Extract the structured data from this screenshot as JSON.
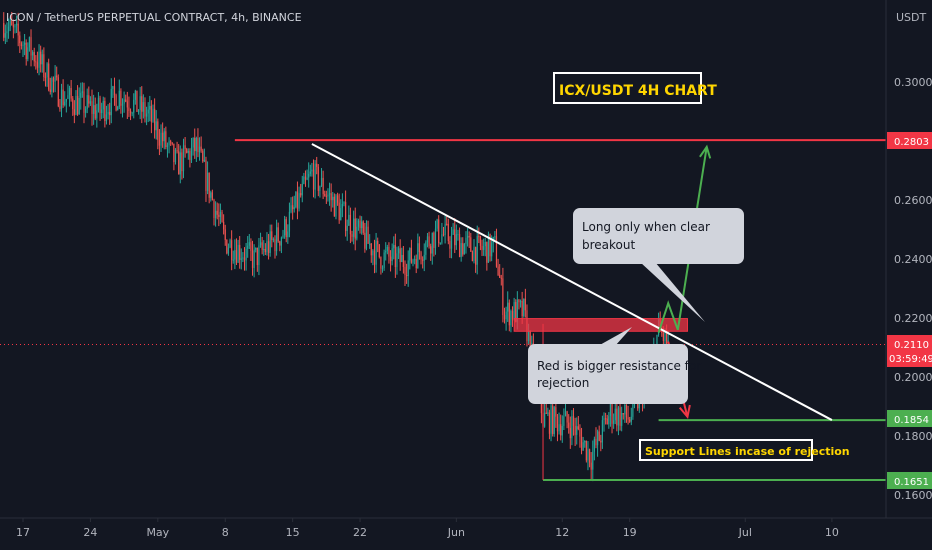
{
  "header": {
    "symbol_title": "ICON / TetherUS PERPETUAL CONTRACT, 4h, BINANCE",
    "currency": "USDT"
  },
  "annotations": {
    "chart_title": "ICX/USDT 4H CHART",
    "callout_long": [
      "Long only when clear",
      "breakout"
    ],
    "callout_red": [
      "Red is bigger resistance for",
      "rejection"
    ],
    "support_label": "Support Lines incase of rejection"
  },
  "price_badges": {
    "resistance_high": "0.2803",
    "current_price": "0.2110",
    "countdown": "03:59:49",
    "support_1": "0.1854",
    "support_2": "0.1651"
  },
  "colors": {
    "background": "#131722",
    "up_candle": "#26a69a",
    "down_candle": "#ef5350",
    "resistance_line": "#f23645",
    "support_line": "#4caf50",
    "trendline": "#ffffff",
    "projection_up": "#4caf50",
    "projection_down": "#f23645",
    "title_box_bg": "#ffffff",
    "title_text": "#ffd600",
    "callout_bg": "#d1d4dc"
  },
  "chart_data": {
    "type": "candlestick",
    "title": "ICX/USDT 4H CHART",
    "ylabel": "USDT",
    "ylim": [
      0.156,
      0.322
    ],
    "y_ticks": [
      0.16,
      0.18,
      0.2,
      0.22,
      0.24,
      0.26,
      0.28,
      0.3
    ],
    "y_tick_labels": [
      "0.1600",
      "0.1800",
      "0.2000",
      "0.2200",
      "0.2400",
      "0.2600",
      "0.2800",
      "0.3000"
    ],
    "x_tick_labels": [
      "17",
      "24",
      "May",
      "8",
      "15",
      "22",
      "Jun",
      "12",
      "19",
      "Jul",
      "10"
    ],
    "x_ticks_dates": [
      "2023-04-17",
      "2023-04-24",
      "2023-05-01",
      "2023-05-08",
      "2023-05-15",
      "2023-05-22",
      "2023-06-01",
      "2023-06-12",
      "2023-06-19",
      "2023-07-01",
      "2023-07-10"
    ],
    "price_path": [
      {
        "date": "2023-04-15",
        "price": 0.32
      },
      {
        "date": "2023-04-18",
        "price": 0.31
      },
      {
        "date": "2023-04-21",
        "price": 0.295
      },
      {
        "date": "2023-04-25",
        "price": 0.29
      },
      {
        "date": "2023-04-27",
        "price": 0.296
      },
      {
        "date": "2023-04-30",
        "price": 0.289
      },
      {
        "date": "2023-05-03",
        "price": 0.272
      },
      {
        "date": "2023-05-05",
        "price": 0.278
      },
      {
        "date": "2023-05-08",
        "price": 0.246
      },
      {
        "date": "2023-05-11",
        "price": 0.24
      },
      {
        "date": "2023-05-14",
        "price": 0.249
      },
      {
        "date": "2023-05-17",
        "price": 0.269
      },
      {
        "date": "2023-05-20",
        "price": 0.256
      },
      {
        "date": "2023-05-24",
        "price": 0.241
      },
      {
        "date": "2023-05-27",
        "price": 0.239
      },
      {
        "date": "2023-05-30",
        "price": 0.249
      },
      {
        "date": "2023-06-03",
        "price": 0.243
      },
      {
        "date": "2023-06-05",
        "price": 0.244
      },
      {
        "date": "2023-06-06",
        "price": 0.222
      },
      {
        "date": "2023-06-08",
        "price": 0.222
      },
      {
        "date": "2023-06-10",
        "price": 0.186
      },
      {
        "date": "2023-06-13",
        "price": 0.184
      },
      {
        "date": "2023-06-15",
        "price": 0.173
      },
      {
        "date": "2023-06-17",
        "price": 0.188
      },
      {
        "date": "2023-06-19",
        "price": 0.186
      },
      {
        "date": "2023-06-21",
        "price": 0.2
      },
      {
        "date": "2023-06-22",
        "price": 0.216
      },
      {
        "date": "2023-06-23",
        "price": 0.211
      }
    ],
    "horizontal_levels": [
      {
        "name": "resistance",
        "price": 0.2803,
        "from": "2023-05-09"
      },
      {
        "name": "support 1",
        "price": 0.1854,
        "from": "2023-06-22"
      },
      {
        "name": "support 2",
        "price": 0.1651,
        "from": "2023-06-10"
      }
    ],
    "resistance_zone": {
      "from": "2023-06-07",
      "to": "2023-06-25",
      "low": 0.2155,
      "high": 0.2198
    },
    "trendline": {
      "start": {
        "date": "2023-05-17",
        "price": 0.279
      },
      "end": {
        "date": "2023-07-10",
        "price": 0.1854
      }
    },
    "projections": [
      {
        "name": "breakout",
        "points": [
          {
            "date": "2023-06-22",
            "price": 0.215
          },
          {
            "date": "2023-06-23",
            "price": 0.225
          },
          {
            "date": "2023-06-24",
            "price": 0.216
          },
          {
            "date": "2023-06-27",
            "price": 0.278
          }
        ]
      },
      {
        "name": "rejection",
        "points": [
          {
            "date": "2023-06-23",
            "price": 0.212
          },
          {
            "date": "2023-06-25",
            "price": 0.1865
          }
        ]
      }
    ],
    "last_price": 0.211,
    "grid": false
  }
}
